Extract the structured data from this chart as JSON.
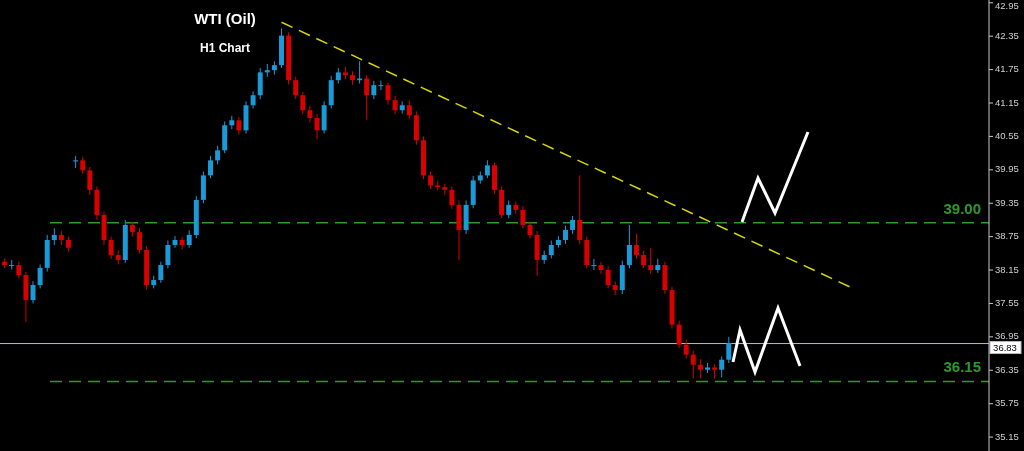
{
  "chart_data": {
    "type": "candlestick",
    "title": "WTI (Oil)",
    "subtitle": "H1 Chart",
    "categories": [
      null,
      null,
      null,
      null,
      null,
      null,
      null,
      null,
      null,
      null,
      null,
      null,
      null,
      null,
      null,
      null,
      null,
      null,
      null,
      null,
      null,
      null,
      null,
      null,
      null,
      null,
      null,
      null,
      null,
      null,
      null,
      null,
      null,
      null,
      null,
      null,
      null,
      null,
      null,
      null,
      null,
      null,
      null,
      null,
      null,
      null,
      null,
      null,
      null,
      null,
      null,
      null,
      null,
      null,
      null,
      null,
      null,
      null,
      null,
      null,
      null,
      null,
      null,
      null,
      null,
      null,
      null,
      null,
      null,
      null,
      null,
      null,
      null,
      null,
      null,
      null,
      null,
      null,
      null,
      null,
      null,
      null,
      null,
      null,
      null,
      null,
      null,
      null,
      null,
      null,
      null,
      null,
      null,
      null,
      null,
      null,
      null,
      null,
      null,
      null,
      null,
      null,
      null,
      null,
      null,
      null,
      null,
      null,
      null,
      null,
      null,
      null,
      null,
      null,
      null,
      null,
      null,
      null,
      null,
      null,
      null,
      null,
      null,
      null,
      null,
      null,
      null,
      null,
      null,
      null,
      null,
      null,
      null,
      null,
      null,
      null,
      null,
      null,
      null
    ],
    "ohlc": [
      [
        38.3,
        38.36,
        38.18,
        38.24
      ],
      [
        38.24,
        38.33,
        38.16,
        38.24
      ],
      [
        38.24,
        38.3,
        38.0,
        38.06
      ],
      [
        38.06,
        38.12,
        37.22,
        37.61
      ],
      [
        37.61,
        37.95,
        37.55,
        37.88
      ],
      [
        37.88,
        38.25,
        37.82,
        38.19
      ],
      [
        38.19,
        38.78,
        38.12,
        38.69
      ],
      [
        38.69,
        38.9,
        38.6,
        38.78
      ],
      [
        38.78,
        38.85,
        38.6,
        38.69
      ],
      [
        38.69,
        38.75,
        38.48,
        38.55
      ],
      [
        40.1,
        40.2,
        39.98,
        40.12
      ],
      [
        40.12,
        40.18,
        39.88,
        39.94
      ],
      [
        39.94,
        40.0,
        39.5,
        39.59
      ],
      [
        39.59,
        39.65,
        39.05,
        39.14
      ],
      [
        39.14,
        39.2,
        38.6,
        38.69
      ],
      [
        38.69,
        38.75,
        38.35,
        38.42
      ],
      [
        38.42,
        38.5,
        38.25,
        38.33
      ],
      [
        38.33,
        39.05,
        38.28,
        38.96
      ],
      [
        38.96,
        39.02,
        38.75,
        38.83
      ],
      [
        38.83,
        38.9,
        38.45,
        38.51
      ],
      [
        38.51,
        38.58,
        37.8,
        37.88
      ],
      [
        37.88,
        38.05,
        37.82,
        37.97
      ],
      [
        37.97,
        38.3,
        37.92,
        38.24
      ],
      [
        38.24,
        38.68,
        38.18,
        38.6
      ],
      [
        38.6,
        38.76,
        38.55,
        38.69
      ],
      [
        38.69,
        38.75,
        38.52,
        38.6
      ],
      [
        38.6,
        38.86,
        38.55,
        38.78
      ],
      [
        38.78,
        39.48,
        38.72,
        39.41
      ],
      [
        39.41,
        39.92,
        39.35,
        39.85
      ],
      [
        39.85,
        40.2,
        39.8,
        40.12
      ],
      [
        40.12,
        40.38,
        40.05,
        40.3
      ],
      [
        40.3,
        40.82,
        40.25,
        40.75
      ],
      [
        40.75,
        40.92,
        40.68,
        40.84
      ],
      [
        40.84,
        40.9,
        40.58,
        40.66
      ],
      [
        40.66,
        41.18,
        40.6,
        41.11
      ],
      [
        41.11,
        41.36,
        41.05,
        41.29
      ],
      [
        41.29,
        41.78,
        41.22,
        41.7
      ],
      [
        41.7,
        41.85,
        41.62,
        41.74
      ],
      [
        41.74,
        41.9,
        41.66,
        41.83
      ],
      [
        41.83,
        42.49,
        41.78,
        42.36
      ],
      [
        42.36,
        42.42,
        41.48,
        41.56
      ],
      [
        41.56,
        41.62,
        41.22,
        41.29
      ],
      [
        41.29,
        41.35,
        40.95,
        41.02
      ],
      [
        41.02,
        41.1,
        40.8,
        40.88
      ],
      [
        40.88,
        40.95,
        40.5,
        40.66
      ],
      [
        40.66,
        41.18,
        40.6,
        41.11
      ],
      [
        41.11,
        41.64,
        41.05,
        41.56
      ],
      [
        41.56,
        41.78,
        41.5,
        41.7
      ],
      [
        41.7,
        41.8,
        41.58,
        41.65
      ],
      [
        41.65,
        41.72,
        41.48,
        41.56
      ],
      [
        41.56,
        41.9,
        41.5,
        41.59
      ],
      [
        41.59,
        41.65,
        40.85,
        41.29
      ],
      [
        41.29,
        41.55,
        41.22,
        41.47
      ],
      [
        41.47,
        41.55,
        41.38,
        41.47
      ],
      [
        41.47,
        41.52,
        41.12,
        41.2
      ],
      [
        41.2,
        41.28,
        40.95,
        41.02
      ],
      [
        41.02,
        41.18,
        40.96,
        41.11
      ],
      [
        41.11,
        41.2,
        40.86,
        40.93
      ],
      [
        40.93,
        41.0,
        40.4,
        40.48
      ],
      [
        40.48,
        40.55,
        39.78,
        39.85
      ],
      [
        39.85,
        39.92,
        39.6,
        39.67
      ],
      [
        39.67,
        39.75,
        39.58,
        39.64
      ],
      [
        39.64,
        39.7,
        39.5,
        39.59
      ],
      [
        39.59,
        39.65,
        39.25,
        39.32
      ],
      [
        39.32,
        39.4,
        38.33,
        38.87
      ],
      [
        38.87,
        39.4,
        38.8,
        39.32
      ],
      [
        39.32,
        39.84,
        39.26,
        39.76
      ],
      [
        39.76,
        39.92,
        39.7,
        39.85
      ],
      [
        39.85,
        40.12,
        39.8,
        40.03
      ],
      [
        40.03,
        40.08,
        39.52,
        39.59
      ],
      [
        39.59,
        39.65,
        39.08,
        39.14
      ],
      [
        39.14,
        39.4,
        39.08,
        39.32
      ],
      [
        39.32,
        39.38,
        39.16,
        39.23
      ],
      [
        39.23,
        39.3,
        38.9,
        38.96
      ],
      [
        38.96,
        39.02,
        38.72,
        38.78
      ],
      [
        38.78,
        38.85,
        38.05,
        38.33
      ],
      [
        38.33,
        38.5,
        38.26,
        38.42
      ],
      [
        38.42,
        38.68,
        38.36,
        38.6
      ],
      [
        38.6,
        38.76,
        38.55,
        38.69
      ],
      [
        38.69,
        38.95,
        38.62,
        38.87
      ],
      [
        38.87,
        39.12,
        38.8,
        39.05
      ],
      [
        39.05,
        39.85,
        38.62,
        38.69
      ],
      [
        38.69,
        38.75,
        38.18,
        38.24
      ],
      [
        38.24,
        38.35,
        38.15,
        38.24
      ],
      [
        38.24,
        38.3,
        38.08,
        38.15
      ],
      [
        38.15,
        38.22,
        37.82,
        37.88
      ],
      [
        37.88,
        37.95,
        37.7,
        37.79
      ],
      [
        37.79,
        38.32,
        37.72,
        38.24
      ],
      [
        38.24,
        38.96,
        38.18,
        38.6
      ],
      [
        38.6,
        38.8,
        38.35,
        38.42
      ],
      [
        38.42,
        38.5,
        38.18,
        38.24
      ],
      [
        38.24,
        38.55,
        38.08,
        38.15
      ],
      [
        38.15,
        38.35,
        38.1,
        38.24
      ],
      [
        38.24,
        38.3,
        37.72,
        37.79
      ],
      [
        37.79,
        37.85,
        37.1,
        37.17
      ],
      [
        37.17,
        37.24,
        36.75,
        36.81
      ],
      [
        36.81,
        36.9,
        36.56,
        36.63
      ],
      [
        36.63,
        36.7,
        36.2,
        36.45
      ],
      [
        36.45,
        36.55,
        36.2,
        36.36
      ],
      [
        36.36,
        36.48,
        36.3,
        36.4
      ],
      [
        36.4,
        36.46,
        36.2,
        36.36
      ],
      [
        36.36,
        36.6,
        36.22,
        36.54
      ],
      [
        36.54,
        36.95,
        36.48,
        36.84
      ],
      null,
      null,
      null,
      null,
      null,
      null,
      null,
      null,
      null,
      null,
      null,
      null,
      null,
      null,
      null,
      null,
      null,
      null,
      null,
      null,
      null,
      null,
      null,
      null,
      null,
      null,
      null,
      null,
      null,
      null,
      null,
      null,
      null,
      null,
      null,
      null
    ],
    "series": [
      {
        "type": "line",
        "color": "#d8d800",
        "line_style": "dashed",
        "values": [
          null,
          null,
          null,
          null,
          null,
          null,
          null,
          null,
          null,
          null,
          null,
          null,
          null,
          null,
          null,
          null,
          null,
          null,
          null,
          null,
          null,
          null,
          null,
          null,
          null,
          null,
          null,
          null,
          null,
          null,
          null,
          null,
          null,
          null,
          null,
          null,
          null,
          null,
          null,
          42.6,
          null,
          null,
          null,
          null,
          null,
          null,
          null,
          null,
          null,
          null,
          null,
          null,
          null,
          null,
          null,
          null,
          null,
          null,
          null,
          null,
          null,
          null,
          null,
          null,
          null,
          null,
          null,
          null,
          null,
          null,
          null,
          null,
          null,
          null,
          null,
          null,
          null,
          null,
          null,
          null,
          null,
          null,
          null,
          null,
          null,
          null,
          null,
          null,
          null,
          null,
          null,
          null,
          null,
          null,
          null,
          null,
          null,
          null,
          null,
          null,
          null,
          null,
          null,
          null,
          null,
          null,
          null,
          null,
          null,
          null,
          null,
          null,
          null,
          null,
          null,
          null,
          null,
          null,
          null,
          37.85,
          null,
          null,
          null,
          null,
          null,
          null,
          null,
          null,
          null,
          null,
          null,
          null,
          null,
          null,
          null,
          null,
          null,
          null,
          null
        ]
      }
    ],
    "ylim": [
      34.9,
      43.0
    ],
    "yticks": [
      35.15,
      35.75,
      36.35,
      36.95,
      37.55,
      38.15,
      38.75,
      39.35,
      39.95,
      40.55,
      41.15,
      41.75,
      42.35,
      42.95
    ],
    "tick_labels": "y",
    "ref_lines": [
      {
        "axis": "y",
        "value": 39.0,
        "label": "39.00",
        "color": "#2e9a2e",
        "line_style": "dashed"
      },
      {
        "axis": "y",
        "value": 36.15,
        "label": "36.15",
        "color": "#2e9a2e",
        "line_style": "dashed"
      },
      {
        "axis": "y",
        "value": 36.83,
        "label": "36.83",
        "color": "#b8b8c8",
        "line_style": "solid"
      }
    ]
  }
}
